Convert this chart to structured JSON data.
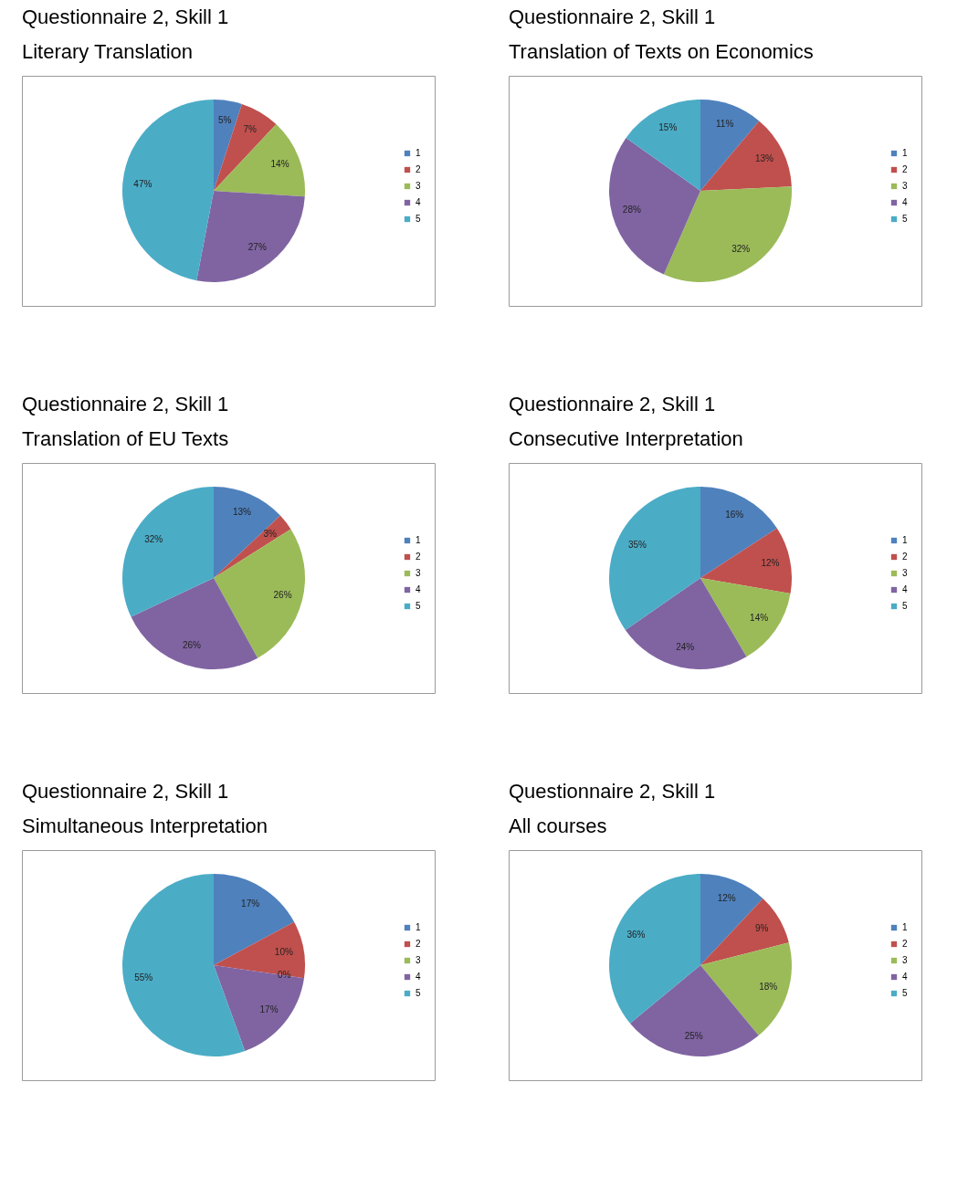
{
  "chart_data": [
    {
      "type": "pie",
      "title": "Questionnaire 2, Skill 1",
      "subtitle": "Literary Translation",
      "categories": [
        "1",
        "2",
        "3",
        "4",
        "5"
      ],
      "values": [
        5,
        7,
        14,
        27,
        47
      ],
      "value_labels": [
        "5%",
        "7%",
        "14%",
        "27%",
        "47%"
      ],
      "colors": [
        "#4f81bd",
        "#c0504d",
        "#9bbb59",
        "#8064a2",
        "#4bacc6"
      ],
      "legend": "right"
    },
    {
      "type": "pie",
      "title": "Questionnaire 2, Skill 1",
      "subtitle": "Translation of Texts on Economics",
      "categories": [
        "1",
        "2",
        "3",
        "4",
        "5"
      ],
      "values": [
        11,
        13,
        32,
        28,
        15
      ],
      "value_labels": [
        "11%",
        "13%",
        "32%",
        "28%",
        "15%"
      ],
      "colors": [
        "#4f81bd",
        "#c0504d",
        "#9bbb59",
        "#8064a2",
        "#4bacc6"
      ],
      "legend": "right"
    },
    {
      "type": "pie",
      "title": "Questionnaire 2, Skill 1",
      "subtitle": "Translation of EU Texts",
      "categories": [
        "1",
        "2",
        "3",
        "4",
        "5"
      ],
      "values": [
        13,
        3,
        26,
        26,
        32
      ],
      "value_labels": [
        "13%",
        "3%",
        "26%",
        "26%",
        "32%"
      ],
      "colors": [
        "#4f81bd",
        "#c0504d",
        "#9bbb59",
        "#8064a2",
        "#4bacc6"
      ],
      "legend": "right"
    },
    {
      "type": "pie",
      "title": "Questionnaire 2, Skill 1",
      "subtitle": "Consecutive Interpretation",
      "categories": [
        "1",
        "2",
        "3",
        "4",
        "5"
      ],
      "values": [
        16,
        12,
        14,
        24,
        35
      ],
      "value_labels": [
        "16%",
        "12%",
        "14%",
        "24%",
        "35%"
      ],
      "colors": [
        "#4f81bd",
        "#c0504d",
        "#9bbb59",
        "#8064a2",
        "#4bacc6"
      ],
      "legend": "right"
    },
    {
      "type": "pie",
      "title": "Questionnaire 2, Skill 1",
      "subtitle": "Simultaneous Interpretation",
      "categories": [
        "1",
        "2",
        "3",
        "4",
        "5"
      ],
      "values": [
        17,
        10,
        0,
        17,
        55
      ],
      "value_labels": [
        "17%",
        "10%",
        "0%",
        "17%",
        "55%"
      ],
      "colors": [
        "#4f81bd",
        "#c0504d",
        "#9bbb59",
        "#8064a2",
        "#4bacc6"
      ],
      "legend": "right"
    },
    {
      "type": "pie",
      "title": "Questionnaire 2, Skill 1",
      "subtitle": "All courses",
      "categories": [
        "1",
        "2",
        "3",
        "4",
        "5"
      ],
      "values": [
        12,
        9,
        18,
        25,
        36
      ],
      "value_labels": [
        "12%",
        "9%",
        "18%",
        "25%",
        "36%"
      ],
      "colors": [
        "#4f81bd",
        "#c0504d",
        "#9bbb59",
        "#8064a2",
        "#4bacc6"
      ],
      "legend": "right"
    }
  ]
}
